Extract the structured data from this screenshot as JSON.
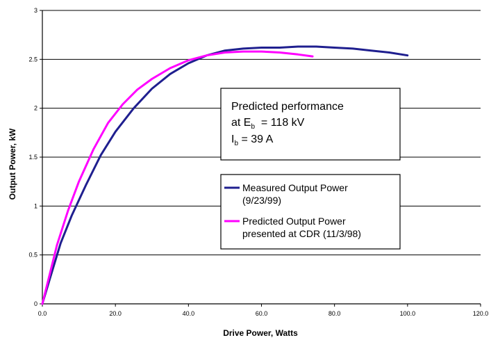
{
  "chart_data": {
    "type": "line",
    "title": "",
    "xlabel": "Drive Power, Watts",
    "ylabel": "Output Power, kW",
    "xlim": [
      0,
      120
    ],
    "ylim": [
      0,
      3
    ],
    "x_ticks": [
      0,
      20,
      40,
      60,
      80,
      100,
      120
    ],
    "x_tick_labels": [
      "0.0",
      "20.0",
      "40.0",
      "60.0",
      "80.0",
      "100.0",
      "120.0"
    ],
    "y_ticks": [
      0,
      0.5,
      1,
      1.5,
      2,
      2.5,
      3
    ],
    "y_tick_labels": [
      "0",
      "0.5",
      "1",
      "1.5",
      "2",
      "2.5",
      "3"
    ],
    "grid": "horizontal",
    "legend_position": "center-right",
    "series": [
      {
        "name": "Measured Output Power (9/23/99)",
        "legend_lines": [
          "Measured Output Power",
          "(9/23/99)"
        ],
        "color": "#1f1f8f",
        "x": [
          0,
          2,
          5,
          8,
          12,
          16,
          20,
          25,
          30,
          35,
          40,
          45,
          50,
          55,
          60,
          65,
          70,
          75,
          80,
          85,
          90,
          95,
          100
        ],
        "y": [
          0,
          0.25,
          0.62,
          0.9,
          1.22,
          1.52,
          1.76,
          2.0,
          2.2,
          2.35,
          2.46,
          2.54,
          2.59,
          2.61,
          2.62,
          2.62,
          2.63,
          2.63,
          2.62,
          2.61,
          2.59,
          2.57,
          2.54
        ]
      },
      {
        "name": "Predicted Output Power presented at CDR (11/3/98)",
        "legend_lines": [
          "Predicted Output Power",
          "presented at CDR (11/3/98)"
        ],
        "color": "#ff00ff",
        "x": [
          0,
          2,
          4,
          7,
          10,
          14,
          18,
          22,
          26,
          30,
          35,
          40,
          45,
          50,
          55,
          60,
          65,
          70,
          74
        ],
        "y": [
          0,
          0.3,
          0.6,
          0.95,
          1.25,
          1.58,
          1.85,
          2.04,
          2.19,
          2.3,
          2.41,
          2.49,
          2.54,
          2.57,
          2.58,
          2.58,
          2.57,
          2.55,
          2.53
        ]
      }
    ],
    "annotation": {
      "line1": "Predicted performance",
      "line2_prefix": "at E",
      "line2_sub": "b",
      "line2_suffix": "  = 118 kV",
      "line3_prefix": "I",
      "line3_sub": "b",
      "line3_suffix": " = 39 A"
    }
  }
}
